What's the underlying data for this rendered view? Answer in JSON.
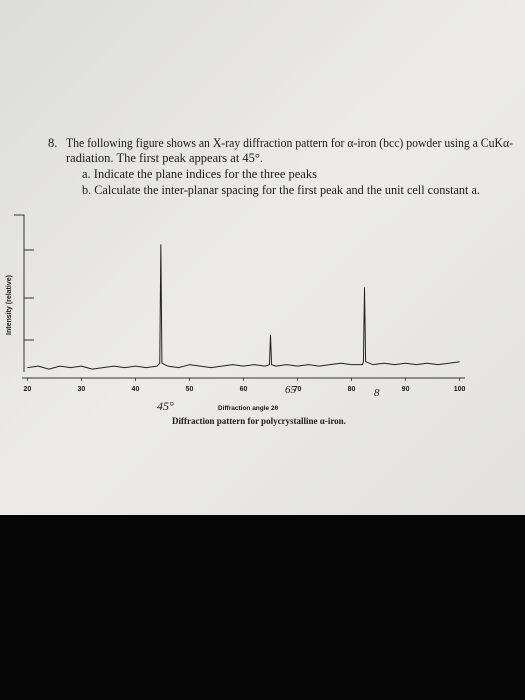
{
  "document": {
    "question_number": "8.",
    "question_lines": [
      "The following figure shows an X-ray diffraction pattern for α-iron (bcc) powder using a CuKα-",
      "radiation. The first peak appears at 45°."
    ],
    "parts": [
      "a. Indicate the plane indices for the three peaks",
      "b. Calculate the inter-planar spacing for the first peak and the unit cell constant a."
    ]
  },
  "chart_data": {
    "type": "line",
    "ylabel": "Intensity (relative)",
    "xlabel": "Diffraction angle 2θ",
    "caption": "Diffraction pattern for polycrystalline α-iron.",
    "annotations": [
      "45°",
      "65",
      "8"
    ],
    "color": "#222222",
    "xlim": [
      19,
      101
    ],
    "ylim": [
      0,
      100
    ],
    "xticks": [
      20,
      30,
      40,
      50,
      60,
      70,
      80,
      90,
      100
    ],
    "x": [
      20,
      22,
      24,
      26,
      28,
      30,
      32,
      34,
      36,
      38,
      40,
      42,
      44,
      44.5,
      44.7,
      44.9,
      46,
      48,
      50,
      52,
      54,
      56,
      58,
      60,
      62,
      64,
      64.8,
      65,
      65.2,
      66,
      68,
      70,
      72,
      74,
      76,
      78,
      80,
      82,
      82.2,
      82.4,
      82.6,
      84,
      86,
      88,
      90,
      92,
      94,
      96,
      98,
      100
    ],
    "values": [
      7,
      8,
      6,
      8,
      7,
      8,
      6,
      7,
      8,
      7,
      8,
      7,
      8,
      10,
      90,
      10,
      8,
      7,
      9,
      8,
      7,
      8,
      9,
      8,
      9,
      8,
      9,
      29,
      9,
      8,
      9,
      8,
      9,
      8,
      9,
      10,
      9,
      9,
      11,
      61,
      11,
      9,
      10,
      9,
      10,
      9,
      10,
      9,
      10,
      11
    ]
  }
}
